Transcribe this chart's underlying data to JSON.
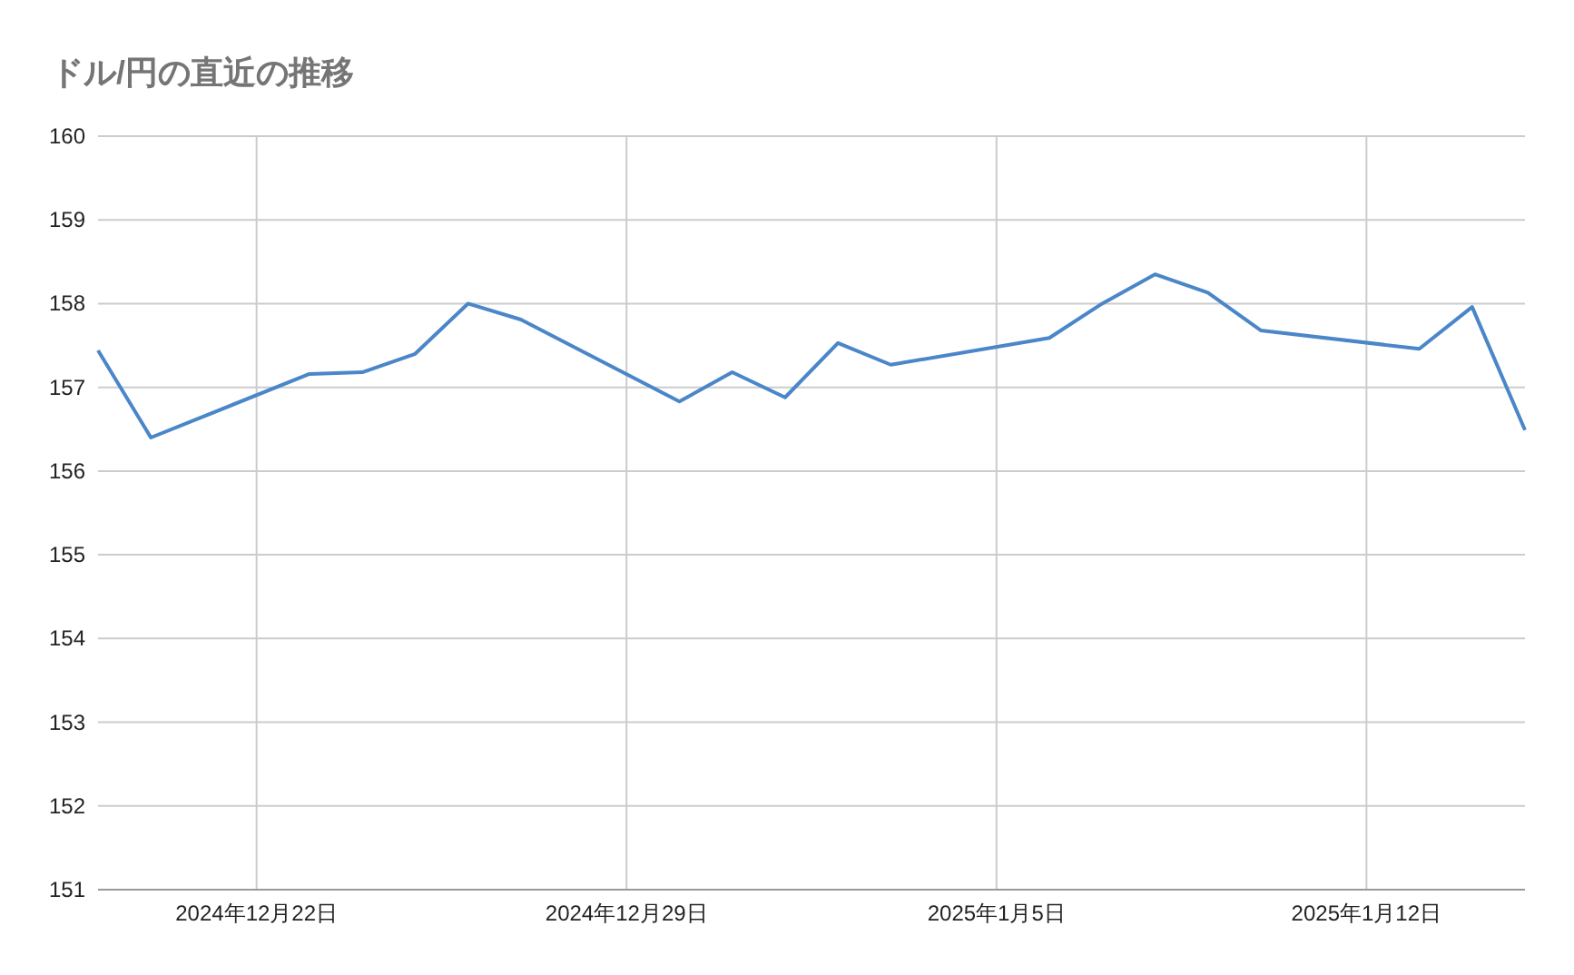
{
  "chart_data": {
    "type": "line",
    "title": "ドル/円の直近の推移",
    "x": [
      "2024-12-19",
      "2024-12-20",
      "2024-12-23",
      "2024-12-24",
      "2024-12-25",
      "2024-12-26",
      "2024-12-27",
      "2024-12-30",
      "2024-12-31",
      "2025-01-01",
      "2025-01-02",
      "2025-01-03",
      "2025-01-06",
      "2025-01-07",
      "2025-01-08",
      "2025-01-09",
      "2025-01-10",
      "2025-01-13",
      "2025-01-14",
      "2025-01-15"
    ],
    "series": [
      {
        "color": "#4a86c8",
        "values": [
          157.44,
          156.4,
          157.16,
          157.18,
          157.4,
          158.0,
          157.81,
          156.83,
          157.18,
          156.88,
          157.53,
          157.27,
          157.59,
          158.0,
          158.35,
          158.13,
          157.68,
          157.46,
          157.96,
          156.49
        ]
      }
    ],
    "xlim": [
      "2024-12-19",
      "2025-01-15"
    ],
    "xticks": [
      {
        "value": "2024-12-22",
        "label": "2024年12月22日"
      },
      {
        "value": "2024-12-29",
        "label": "2024年12月29日"
      },
      {
        "value": "2025-01-05",
        "label": "2025年1月5日"
      },
      {
        "value": "2025-01-12",
        "label": "2025年1月12日"
      }
    ],
    "ylim": [
      151,
      160
    ],
    "yticks": [
      151,
      152,
      153,
      154,
      155,
      156,
      157,
      158,
      159,
      160
    ],
    "grid": true,
    "marker": "none",
    "line_style": "solid"
  }
}
